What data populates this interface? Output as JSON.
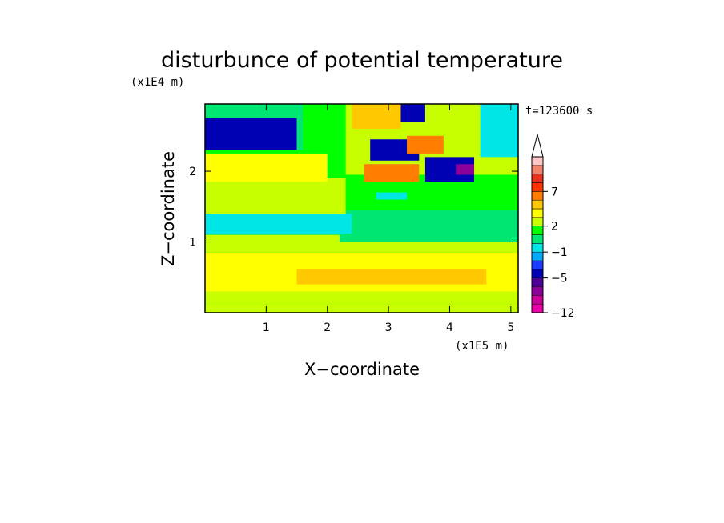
{
  "chart_data": {
    "type": "heatmap",
    "title": "disturbunce of potential temperature",
    "time_label": "t=123600 s",
    "xlabel": "X−coordinate",
    "ylabel": "Z−coordinate",
    "x_multiplier": "(x1E5 m)",
    "y_multiplier": "(x1E4 m)",
    "xlim": [
      0,
      5.12
    ],
    "ylim": [
      0,
      2.95
    ],
    "x_ticks": [
      1,
      2,
      3,
      4,
      5
    ],
    "y_ticks": [
      1,
      2
    ],
    "x_tick_labels": [
      "1",
      "2",
      "3",
      "4",
      "5"
    ],
    "y_tick_labels": [
      "1",
      "2"
    ],
    "colorbar": {
      "levels": [
        -12,
        -10,
        -8,
        -6,
        -5,
        -3,
        -2,
        -1,
        0,
        1,
        2,
        3,
        4,
        5,
        7,
        8,
        9,
        10
      ],
      "colors": [
        "#e600a6",
        "#cc0099",
        "#8c0099",
        "#4b0096",
        "#0000b4",
        "#1e3cff",
        "#00aaff",
        "#00e6e6",
        "#00e673",
        "#00ff00",
        "#c8ff00",
        "#ffff00",
        "#ffc800",
        "#ff7d00",
        "#ff3200",
        "#e6321e",
        "#f0826e",
        "#ffc8c8"
      ],
      "tick_labels": [
        "7",
        "2",
        "−1",
        "−5",
        "−12"
      ],
      "extend": "max"
    },
    "regions": [
      {
        "x": [
          0,
          5.12
        ],
        "z": [
          0,
          0.12
        ],
        "value": 2.5
      },
      {
        "x": [
          0,
          5.12
        ],
        "z": [
          0.12,
          0.3
        ],
        "value": 2.5
      },
      {
        "x": [
          0,
          5.12
        ],
        "z": [
          0.3,
          0.85
        ],
        "value": 3.5
      },
      {
        "x": [
          1.5,
          4.6
        ],
        "z": [
          0.4,
          0.62
        ],
        "value": 4.5
      },
      {
        "x": [
          0,
          5.12
        ],
        "z": [
          0.85,
          1.0
        ],
        "value": 2.5
      },
      {
        "x": [
          0,
          5.12
        ],
        "z": [
          1.0,
          1.45
        ],
        "value": 0.5
      },
      {
        "x": [
          0,
          2.2
        ],
        "z": [
          0.95,
          1.1
        ],
        "value": 2.5
      },
      {
        "x": [
          0,
          2.4
        ],
        "z": [
          1.12,
          1.4
        ],
        "value": -0.5
      },
      {
        "x": [
          0,
          2.3
        ],
        "z": [
          1.4,
          1.9
        ],
        "value": 2.5
      },
      {
        "x": [
          2.3,
          5.12
        ],
        "z": [
          1.5,
          1.95
        ],
        "value": 1.5
      },
      {
        "x": [
          0,
          2.0
        ],
        "z": [
          1.85,
          2.25
        ],
        "value": 3.5
      },
      {
        "x": [
          0,
          1.6
        ],
        "z": [
          2.3,
          2.95
        ],
        "value": 0.5
      },
      {
        "x": [
          0,
          1.5
        ],
        "z": [
          2.3,
          2.75
        ],
        "value": -4.5
      },
      {
        "x": [
          2.3,
          5.12
        ],
        "z": [
          1.95,
          2.95
        ],
        "value": 2.5
      },
      {
        "x": [
          2.6,
          3.5
        ],
        "z": [
          1.85,
          2.1
        ],
        "value": 5.5
      },
      {
        "x": [
          2.7,
          3.5
        ],
        "z": [
          2.15,
          2.45
        ],
        "value": -4.5
      },
      {
        "x": [
          3.2,
          3.6
        ],
        "z": [
          2.7,
          2.95
        ],
        "value": -4.5
      },
      {
        "x": [
          3.3,
          3.9
        ],
        "z": [
          2.25,
          2.5
        ],
        "value": 5.5
      },
      {
        "x": [
          3.6,
          4.4
        ],
        "z": [
          1.85,
          2.2
        ],
        "value": -4.5
      },
      {
        "x": [
          4.1,
          4.4
        ],
        "z": [
          1.95,
          2.1
        ],
        "value": -7.0
      },
      {
        "x": [
          2.4,
          3.2
        ],
        "z": [
          2.6,
          2.95
        ],
        "value": 4.5
      },
      {
        "x": [
          2.8,
          3.3
        ],
        "z": [
          1.6,
          1.7
        ],
        "value": -0.5
      },
      {
        "x": [
          4.5,
          5.12
        ],
        "z": [
          2.2,
          2.95
        ],
        "value": -0.5
      }
    ]
  }
}
